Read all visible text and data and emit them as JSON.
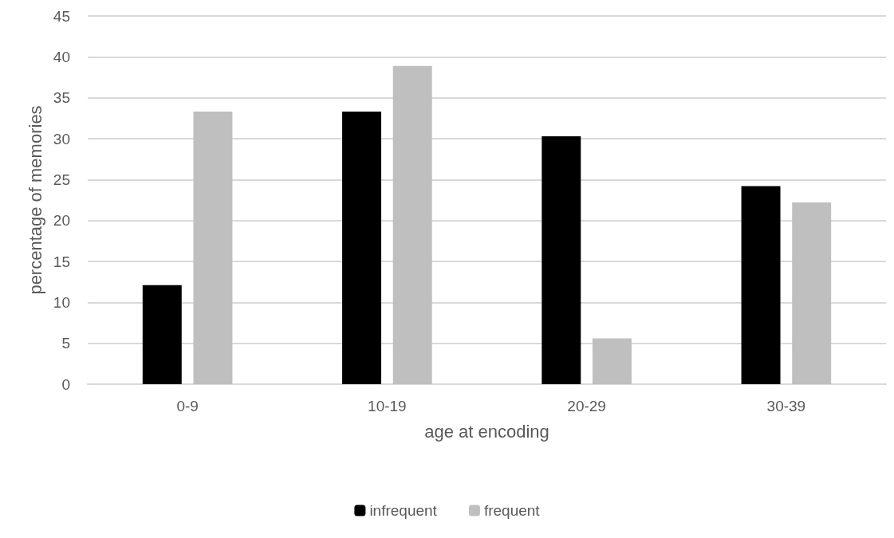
{
  "chart_data": {
    "type": "bar",
    "xlabel": "age at encoding",
    "ylabel": "percentage of memories",
    "categories": [
      "0-9",
      "10-19",
      "20-29",
      "30-39"
    ],
    "series": [
      {
        "name": "infrequent",
        "color": "#000000",
        "values": [
          12.1,
          33.3,
          30.3,
          24.2
        ]
      },
      {
        "name": "frequent",
        "color": "#bfbfbf",
        "values": [
          33.3,
          38.9,
          5.6,
          22.2
        ]
      }
    ],
    "ylim": [
      0,
      45
    ],
    "yticks": [
      0,
      5,
      10,
      15,
      20,
      25,
      30,
      35,
      40,
      45
    ],
    "grid": "y",
    "legend": "bottom"
  }
}
